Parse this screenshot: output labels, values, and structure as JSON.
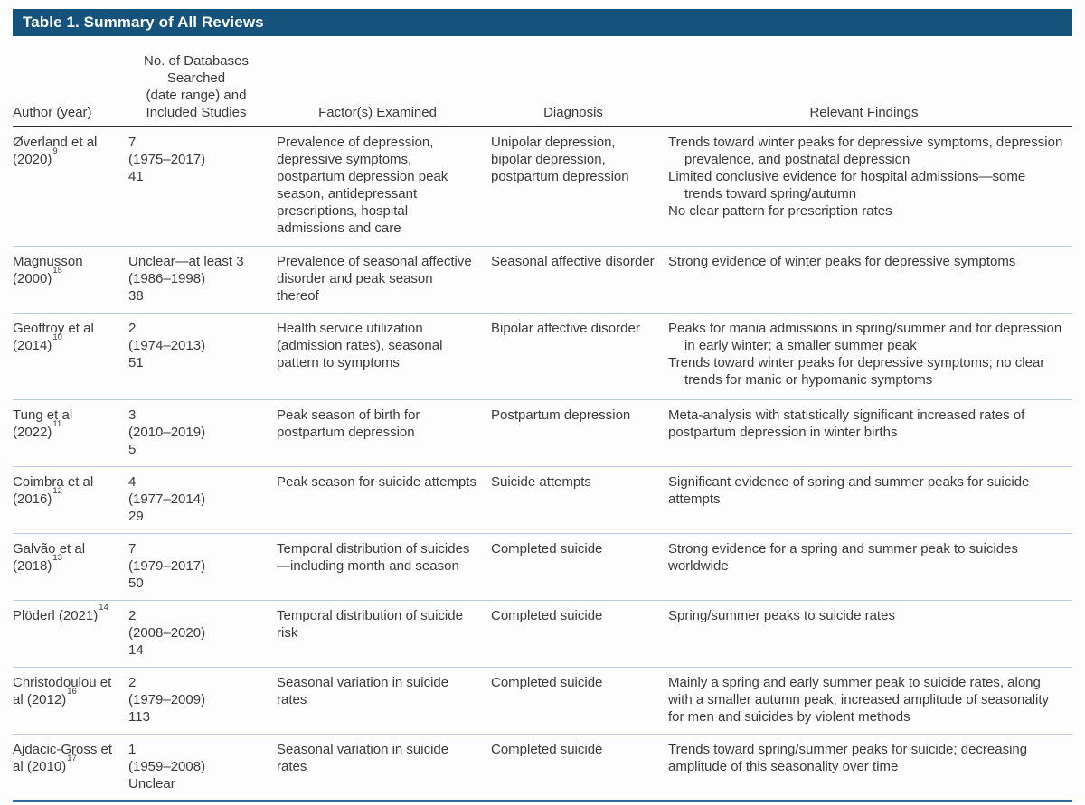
{
  "table": {
    "title": "Table 1. Summary of All Reviews",
    "title_bar_color": "#15537c",
    "row_divider_color": "#b9cbde",
    "header_rule_color": "#2d2d2d",
    "bottom_rule_color": "#35689b",
    "headers": {
      "author": "Author (year)",
      "databases": "No. of Databases\nSearched\n(date range) and\nIncluded Studies",
      "factors": "Factor(s) Examined",
      "diagnosis": "Diagnosis",
      "findings": "Relevant Findings"
    },
    "rows": [
      {
        "author": "Øverland et al (2020)",
        "ref": "9",
        "databases": "7\n(1975–2017)\n41",
        "factors": "Prevalence of depression, depressive symptoms, postpartum depression peak season, antidepressant prescriptions, hospital admissions and care",
        "diagnosis": "Unipolar depression, bipolar depression, postpartum depression",
        "findings": [
          "Trends toward winter peaks for depressive symptoms, depression prevalence, and postnatal depression",
          "Limited conclusive evidence for hospital admissions—some trends toward spring/autumn",
          "No clear pattern for prescription rates"
        ]
      },
      {
        "author": "Magnusson (2000)",
        "ref": "15",
        "databases": "Unclear—at least 3\n(1986–1998)\n38",
        "factors": "Prevalence of seasonal affective disorder and peak season thereof",
        "diagnosis": "Seasonal affective disorder",
        "findings": [
          "Strong evidence of winter peaks for depressive symptoms"
        ]
      },
      {
        "author": "Geoffroy et al (2014)",
        "ref": "10",
        "databases": "2\n(1974–2013)\n51",
        "factors": "Health service utilization (admission rates), seasonal pattern to symptoms",
        "diagnosis": "Bipolar affective disorder",
        "findings": [
          "Peaks for mania admissions in spring/summer and for depression in early winter; a smaller summer peak",
          "Trends toward winter peaks for depressive symptoms; no clear trends for manic or hypomanic symptoms"
        ]
      },
      {
        "author": "Tung et al (2022)",
        "ref": "11",
        "databases": "3\n(2010–2019)\n5",
        "factors": "Peak season of birth for postpartum depression",
        "diagnosis": "Postpartum depression",
        "findings": [
          "Meta-analysis with statistically significant increased rates of postpartum depression in winter births"
        ]
      },
      {
        "author": "Coimbra et al (2016)",
        "ref": "12",
        "databases": "4\n(1977–2014)\n29",
        "factors": "Peak season for suicide attempts",
        "diagnosis": "Suicide attempts",
        "findings": [
          "Significant evidence of spring and summer peaks for suicide attempts"
        ]
      },
      {
        "author": "Galvão et al (2018)",
        "ref": "13",
        "databases": "7\n(1979–2017)\n50",
        "factors": "Temporal distribution of suicides—including month and season",
        "diagnosis": "Completed suicide",
        "findings": [
          "Strong evidence for a spring and summer peak to suicides worldwide"
        ]
      },
      {
        "author": "Plöderl (2021)",
        "ref": "14",
        "databases": "2\n(2008–2020)\n14",
        "factors": "Temporal distribution of suicide risk",
        "diagnosis": "Completed suicide",
        "findings": [
          "Spring/summer peaks to suicide rates"
        ]
      },
      {
        "author": "Christodoulou et al (2012)",
        "ref": "16",
        "databases": "2\n(1979–2009)\n113",
        "factors": "Seasonal variation in suicide rates",
        "diagnosis": "Completed suicide",
        "findings": [
          "Mainly a spring and early summer peak to suicide rates, along with a smaller autumn peak; increased amplitude of seasonality for men and suicides by violent methods"
        ]
      },
      {
        "author": "Ajdacic-Gross et al (2010)",
        "ref": "17",
        "databases": "1\n(1959–2008)\nUnclear",
        "factors": "Seasonal variation in suicide rates",
        "diagnosis": "Completed suicide",
        "findings": [
          "Trends toward spring/summer peaks for suicide; decreasing amplitude of this seasonality over time"
        ]
      }
    ]
  }
}
